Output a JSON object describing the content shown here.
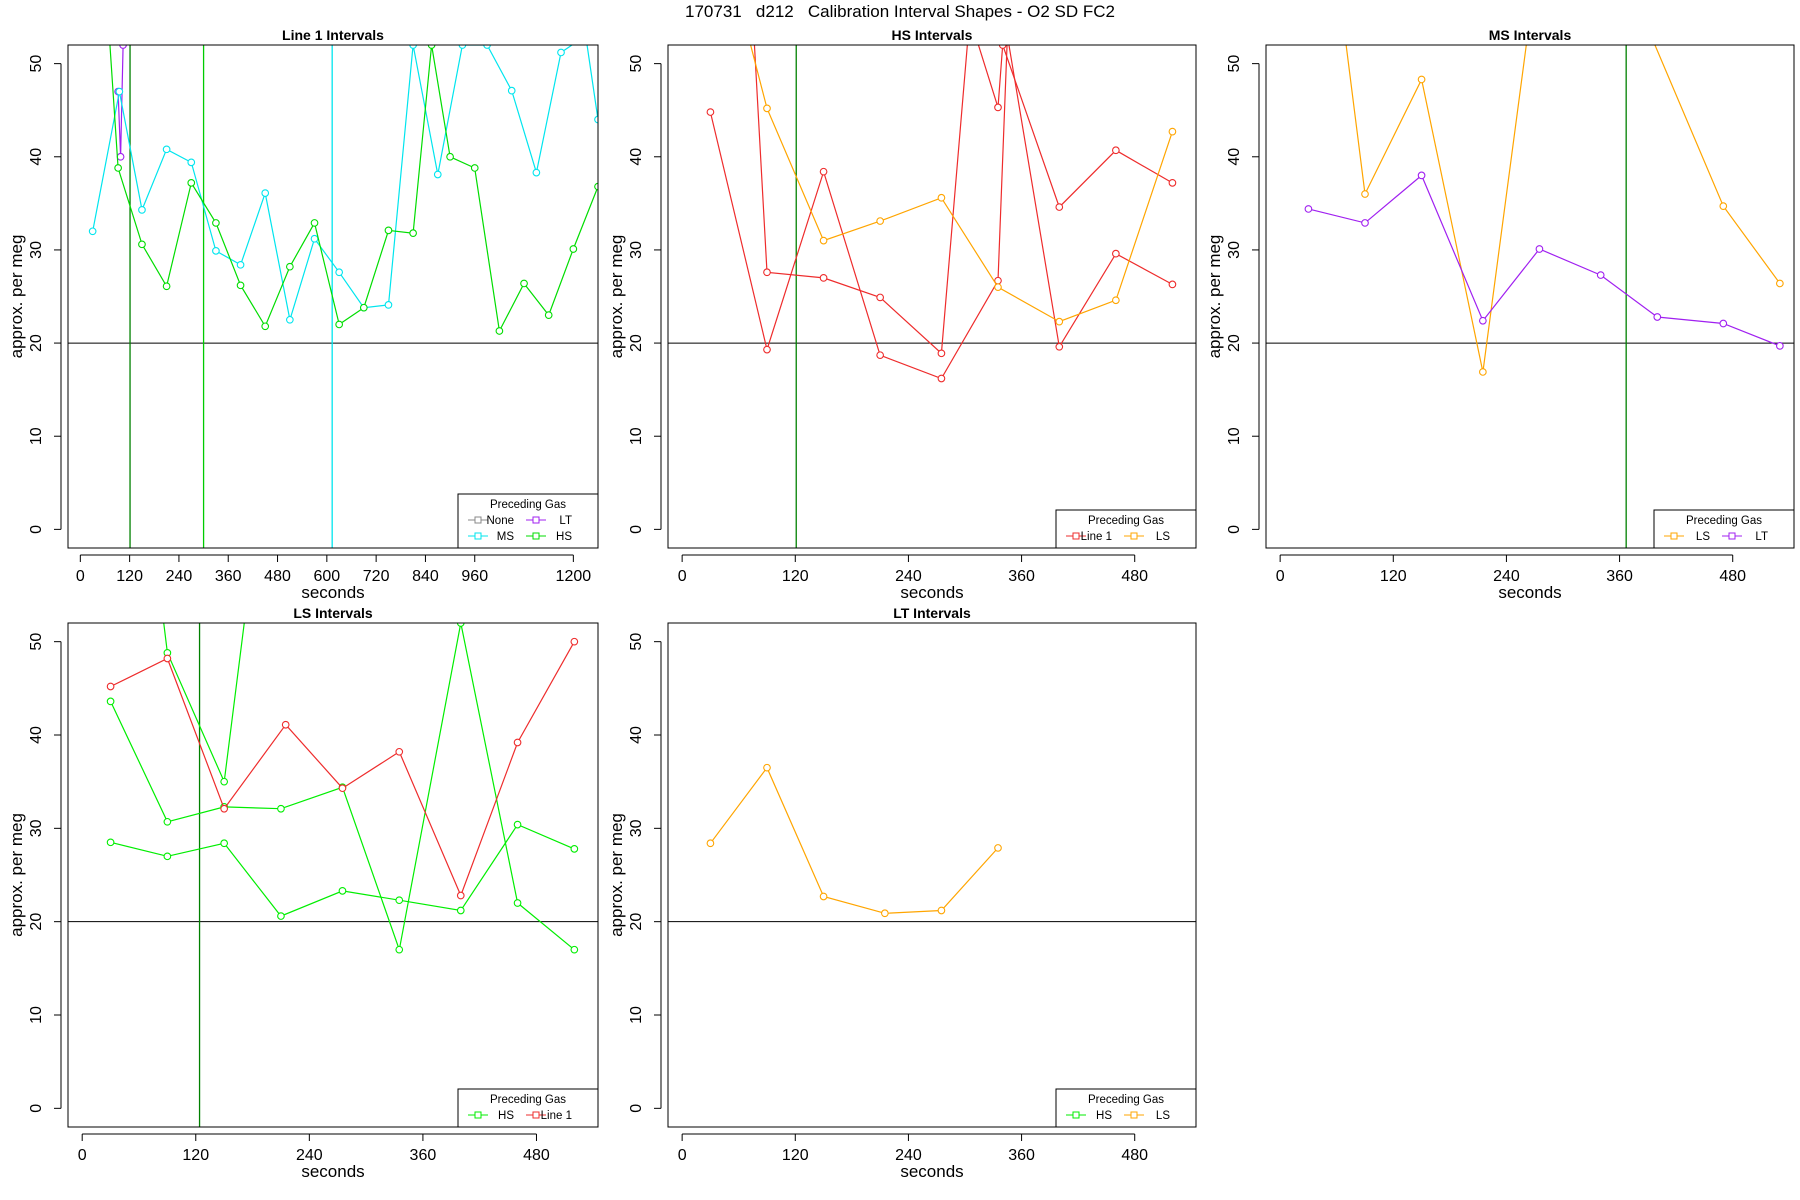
{
  "figure_title": "170731   d212   Calibration Interval Shapes - O2 SD FC2",
  "colors": {
    "frame": "#000000",
    "refline": "#000000",
    "vline_green": "#008000",
    "vline_cyan": "#00E5EE"
  },
  "chart_data": [
    {
      "type": "line",
      "title": "Line 1 Intervals",
      "xlabel": "seconds",
      "ylabel": "approx. per meg",
      "xlim": [
        -30,
        1260
      ],
      "ylim": [
        -2,
        52
      ],
      "xticks": [
        0,
        120,
        240,
        360,
        480,
        600,
        720,
        840,
        960,
        1200
      ],
      "yticks": [
        0,
        10,
        20,
        30,
        40,
        50
      ],
      "reference_line_y": 20,
      "vertical_lines": [
        {
          "x": 121,
          "color": "#008000"
        },
        {
          "x": 300,
          "color": "#00CC00"
        },
        {
          "x": 613,
          "color": "#00E5EE"
        }
      ],
      "legend": {
        "title": "Preceding Gas",
        "position": "bottom-right",
        "columns": 2,
        "entries": [
          {
            "label": "None",
            "color": "#888888"
          },
          {
            "label": "LT",
            "color": "#A020F0"
          },
          {
            "label": "MS",
            "color": "#00E5EE"
          },
          {
            "label": "HS",
            "color": "#00DD00"
          }
        ]
      },
      "series": [
        {
          "color": "#A020F0",
          "x": [
            92,
            98,
            104,
            110
          ],
          "y": [
            47,
            40,
            52,
            56
          ]
        },
        {
          "color": "#00E5EE",
          "x": [
            30,
            95,
            150,
            210,
            270,
            330,
            390,
            450,
            510,
            570,
            630,
            690,
            750,
            810,
            870,
            930,
            990,
            1050,
            1110,
            1170,
            1230,
            1260
          ],
          "y": [
            32,
            47,
            34.3,
            40.8,
            39.4,
            29.9,
            28.4,
            36.1,
            22.5,
            31.2,
            27.6,
            23.8,
            24.1,
            52,
            38.1,
            52,
            52,
            47.1,
            38.3,
            51.2,
            53,
            44
          ]
        },
        {
          "color": "#00DD00",
          "x": [
            60,
            92,
            150,
            210,
            270,
            330,
            390,
            450,
            510,
            570,
            630,
            690,
            750,
            810,
            855,
            900,
            960,
            1020,
            1080,
            1140,
            1200,
            1260
          ],
          "y": [
            60,
            38.8,
            30.6,
            26.1,
            37.2,
            32.9,
            26.2,
            21.8,
            28.2,
            32.9,
            22,
            23.8,
            32.1,
            31.8,
            52,
            40,
            38.8,
            21.3,
            26.4,
            23,
            30.1,
            36.8
          ]
        }
      ]
    },
    {
      "type": "line",
      "title": "HS Intervals",
      "xlabel": "seconds",
      "ylabel": "approx. per meg",
      "xlim": [
        -15,
        545
      ],
      "ylim": [
        -2,
        52
      ],
      "xticks": [
        0,
        120,
        240,
        360,
        480
      ],
      "yticks": [
        0,
        10,
        20,
        30,
        40,
        50
      ],
      "reference_line_y": 20,
      "vertical_lines": [
        {
          "x": 121,
          "color": "#008000"
        }
      ],
      "legend": {
        "title": "Preceding Gas",
        "position": "bottom-right",
        "columns": 2,
        "entries": [
          {
            "label": "Line 1",
            "color": "#EE2C2C"
          },
          {
            "label": "LS",
            "color": "#FFA500"
          }
        ]
      },
      "series": [
        {
          "color": "#EE2C2C",
          "x": [
            30,
            90,
            150,
            210,
            275,
            335,
            345,
            400,
            460,
            520
          ],
          "y": [
            44.8,
            19.3,
            38.4,
            18.7,
            16.2,
            26.7,
            53,
            19.6,
            29.6,
            26.3
          ]
        },
        {
          "color": "#EE2C2C",
          "x": [
            75,
            90,
            150,
            210,
            275,
            305,
            335,
            340,
            400,
            460,
            520
          ],
          "y": [
            55,
            27.6,
            27,
            24.9,
            18.9,
            55,
            45.3,
            52,
            34.6,
            40.7,
            37.2
          ]
        },
        {
          "color": "#FFA500",
          "x": [
            65,
            90,
            150,
            210,
            275,
            335,
            400,
            460,
            520
          ],
          "y": [
            55,
            45.2,
            31,
            33.1,
            35.6,
            26,
            22.3,
            24.6,
            42.7
          ]
        }
      ]
    },
    {
      "type": "line",
      "title": "MS Intervals",
      "xlabel": "seconds",
      "ylabel": "approx. per meg",
      "xlim": [
        -15,
        545
      ],
      "ylim": [
        -2,
        52
      ],
      "xticks": [
        0,
        120,
        240,
        360,
        480
      ],
      "yticks": [
        0,
        10,
        20,
        30,
        40,
        50
      ],
      "reference_line_y": 20,
      "vertical_lines": [
        {
          "x": 367,
          "color": "#008000"
        }
      ],
      "legend": {
        "title": "Preceding Gas",
        "position": "bottom-right",
        "columns": 2,
        "entries": [
          {
            "label": "LS",
            "color": "#FFA500"
          },
          {
            "label": "LT",
            "color": "#A020F0"
          }
        ]
      },
      "series": [
        {
          "color": "#FFA500",
          "x": [
            65,
            90,
            150,
            215,
            265,
            385,
            470,
            530
          ],
          "y": [
            56,
            36,
            48.3,
            16.9,
            55,
            55,
            34.7,
            26.4
          ]
        },
        {
          "color": "#A020F0",
          "x": [
            30,
            90,
            150,
            215,
            275,
            340,
            400,
            470,
            530
          ],
          "y": [
            34.4,
            32.9,
            38,
            22.4,
            30.1,
            27.3,
            22.8,
            22.1,
            19.7
          ]
        }
      ]
    },
    {
      "type": "line",
      "title": "LS Intervals",
      "xlabel": "seconds",
      "ylabel": "approx. per meg",
      "xlim": [
        -15,
        545
      ],
      "ylim": [
        -2,
        52
      ],
      "xticks": [
        0,
        120,
        240,
        360,
        480
      ],
      "yticks": [
        0,
        10,
        20,
        30,
        40,
        50
      ],
      "reference_line_y": 20,
      "vertical_lines": [
        {
          "x": 124,
          "color": "#008000"
        }
      ],
      "legend": {
        "title": "Preceding Gas",
        "position": "bottom-right",
        "columns": 2,
        "entries": [
          {
            "label": "HS",
            "color": "#00EE00"
          },
          {
            "label": "Line 1",
            "color": "#EE2C2C"
          }
        ]
      },
      "series": [
        {
          "color": "#00EE00",
          "x": [
            30,
            90,
            150,
            210,
            275,
            335,
            400,
            460,
            520
          ],
          "y": [
            28.5,
            27,
            28.4,
            20.6,
            23.3,
            22.3,
            21.2,
            30.4,
            27.8
          ]
        },
        {
          "color": "#00EE00",
          "x": [
            30,
            90,
            150,
            210,
            275,
            335,
            400,
            460,
            520
          ],
          "y": [
            43.6,
            30.7,
            32.3,
            32.1,
            34.4,
            17,
            52,
            22,
            17
          ]
        },
        {
          "color": "#00EE00",
          "x": [
            85,
            90,
            150,
            175
          ],
          "y": [
            53,
            48.8,
            35,
            55
          ]
        },
        {
          "color": "#EE2C2C",
          "x": [
            30,
            90,
            150,
            215,
            275,
            335,
            400,
            460,
            520
          ],
          "y": [
            45.2,
            48.2,
            32.1,
            41.1,
            34.3,
            38.2,
            22.8,
            39.2,
            50
          ]
        }
      ]
    },
    {
      "type": "line",
      "title": "LT Intervals",
      "xlabel": "seconds",
      "ylabel": "approx. per meg",
      "xlim": [
        -15,
        545
      ],
      "ylim": [
        -2,
        52
      ],
      "xticks": [
        0,
        120,
        240,
        360,
        480
      ],
      "yticks": [
        0,
        10,
        20,
        30,
        40,
        50
      ],
      "reference_line_y": 20,
      "vertical_lines": [],
      "legend": {
        "title": "Preceding Gas",
        "position": "bottom-right",
        "columns": 2,
        "entries": [
          {
            "label": "HS",
            "color": "#00EE00"
          },
          {
            "label": "LS",
            "color": "#FFA500"
          }
        ]
      },
      "series": [
        {
          "color": "#FFA500",
          "x": [
            30,
            90,
            150,
            215,
            275,
            335
          ],
          "y": [
            28.4,
            36.5,
            22.7,
            20.9,
            21.2,
            27.9
          ]
        }
      ]
    }
  ]
}
